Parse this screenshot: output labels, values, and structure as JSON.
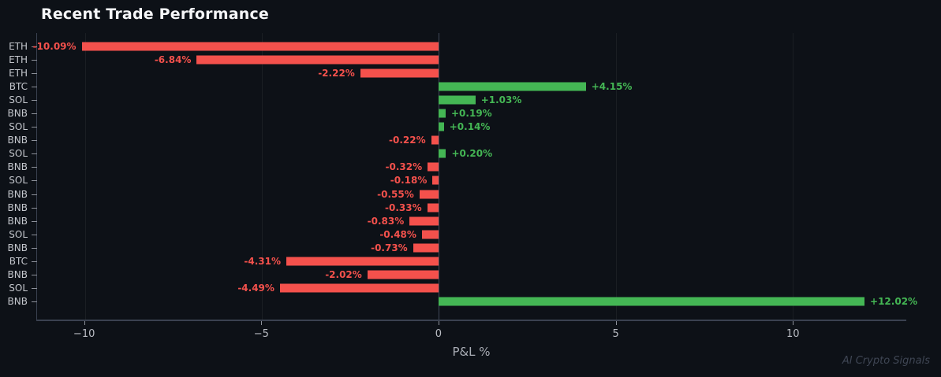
{
  "title": "Recent Trade Performance",
  "watermark": "AI Crypto Signals",
  "colors": {
    "background": "#0d1117",
    "positive": "#44b654",
    "negative": "#f4514c",
    "title_text": "#f5f6f8",
    "tick_label": "#c4c7cd",
    "axis_spine": "#3a4150",
    "zero_line": "#3f4757",
    "xlabel_text": "#a9adb5",
    "watermark_text": "#3f4654"
  },
  "chart_data": {
    "type": "bar",
    "orientation": "horizontal",
    "title": "Recent Trade Performance",
    "xlabel": "P&L %",
    "ylabel": "",
    "grid": true,
    "legend": false,
    "xlim": [
      -11.35,
      13.2
    ],
    "x_ticks": [
      {
        "value": -10,
        "label": "−10"
      },
      {
        "value": -5,
        "label": "−5"
      },
      {
        "value": 0,
        "label": "0"
      },
      {
        "value": 5,
        "label": "5"
      },
      {
        "value": 10,
        "label": "10"
      }
    ],
    "categories": [
      "ETH",
      "ETH",
      "ETH",
      "BTC",
      "SOL",
      "BNB",
      "SOL",
      "BNB",
      "SOL",
      "BNB",
      "SOL",
      "BNB",
      "BNB",
      "BNB",
      "SOL",
      "BNB",
      "BTC",
      "BNB",
      "SOL",
      "BNB"
    ],
    "values": [
      -10.09,
      -6.84,
      -2.22,
      4.15,
      1.03,
      0.19,
      0.14,
      -0.22,
      0.2,
      -0.32,
      -0.18,
      -0.55,
      -0.33,
      -0.83,
      -0.48,
      -0.73,
      -4.31,
      -2.02,
      -4.49,
      12.02
    ],
    "bar_labels": [
      "-10.09%",
      "-6.84%",
      "-2.22%",
      "+4.15%",
      "+1.03%",
      "+0.19%",
      "+0.14%",
      "-0.22%",
      "+0.20%",
      "-0.32%",
      "-0.18%",
      "-0.55%",
      "-0.33%",
      "-0.83%",
      "-0.48%",
      "-0.73%",
      "-4.31%",
      "-2.02%",
      "-4.49%",
      "+12.02%"
    ]
  }
}
